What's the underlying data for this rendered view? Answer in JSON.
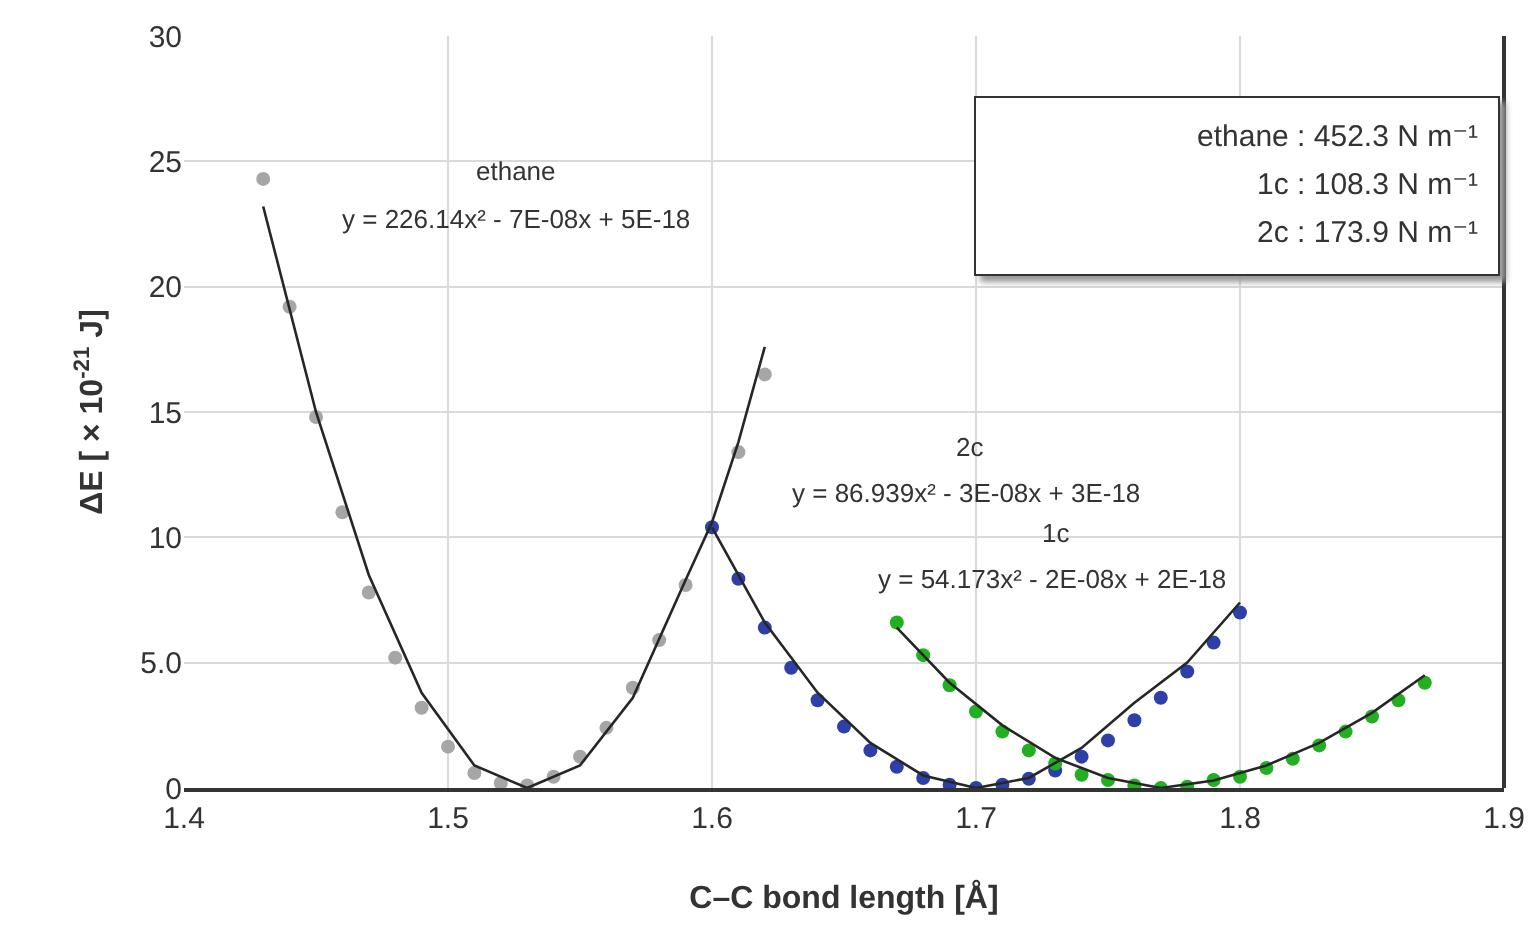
{
  "chart_data": {
    "type": "scatter",
    "xlabel": "C–C bond length [Å]",
    "ylabel": "ΔE [ × 10$^{-21}$ J]",
    "xlim": [
      1.4,
      1.9
    ],
    "xticks": [
      1.4,
      1.5,
      1.6,
      1.7,
      1.8,
      1.9
    ],
    "ylim": [
      0,
      30
    ],
    "yticks": [
      0,
      {
        "value": 5,
        "label": "5.0"
      },
      10,
      15,
      20,
      25,
      30
    ],
    "grid": true,
    "marker": "circle",
    "series": [
      {
        "color": "#a6a6a6",
        "x": [
          1.43,
          1.44,
          1.45,
          1.46,
          1.47,
          1.48,
          1.49,
          1.5,
          1.51,
          1.52,
          1.53,
          1.54,
          1.55,
          1.56,
          1.57,
          1.58,
          1.59,
          1.61,
          1.62
        ],
        "values": [
          24.3,
          19.2,
          14.8,
          11.0,
          7.8,
          5.2,
          3.2,
          1.65,
          0.6,
          0.2,
          0.1,
          0.45,
          1.25,
          2.4,
          4.0,
          5.9,
          8.1,
          13.4,
          16.5
        ]
      },
      {
        "color": "#2f3fa8",
        "x": [
          1.6,
          1.61,
          1.62,
          1.63,
          1.64,
          1.65,
          1.66,
          1.67,
          1.68,
          1.69,
          1.7,
          1.71,
          1.72,
          1.73,
          1.74,
          1.75,
          1.76,
          1.77,
          1.78,
          1.79,
          1.8
        ],
        "values": [
          10.4,
          8.35,
          6.4,
          4.8,
          3.5,
          2.45,
          1.5,
          0.85,
          0.4,
          0.13,
          0.0,
          0.13,
          0.37,
          0.7,
          1.25,
          1.9,
          2.7,
          3.6,
          4.65,
          5.8,
          7.0
        ]
      },
      {
        "color": "#22b022",
        "x": [
          1.67,
          1.68,
          1.69,
          1.7,
          1.71,
          1.72,
          1.73,
          1.74,
          1.75,
          1.76,
          1.77,
          1.78,
          1.79,
          1.8,
          1.81,
          1.82,
          1.83,
          1.84,
          1.85,
          1.86,
          1.87
        ],
        "values": [
          6.6,
          5.3,
          4.1,
          3.05,
          2.25,
          1.5,
          0.98,
          0.53,
          0.32,
          0.1,
          0.0,
          0.05,
          0.32,
          0.45,
          0.8,
          1.17,
          1.7,
          2.25,
          2.85,
          3.5,
          4.2
        ]
      },
      {
        "type": "line",
        "color": "#262626",
        "marker": "none",
        "x": [
          1.43,
          1.45,
          1.47,
          1.49,
          1.51,
          1.53,
          1.55,
          1.57,
          1.59,
          1.6,
          1.61,
          1.62
        ],
        "values": [
          23.2,
          15.0,
          8.5,
          3.8,
          0.9,
          0,
          0.9,
          3.6,
          8.3,
          10.6,
          13.8,
          17.6
        ]
      },
      {
        "type": "line",
        "color": "#262626",
        "marker": "none",
        "x": [
          1.6,
          1.62,
          1.64,
          1.66,
          1.68,
          1.7,
          1.72,
          1.74,
          1.76,
          1.78,
          1.8
        ],
        "values": [
          10.4,
          6.6,
          3.8,
          1.8,
          0.5,
          0,
          0.4,
          1.6,
          3.4,
          5.0,
          7.4
        ]
      },
      {
        "type": "line",
        "color": "#262626",
        "marker": "none",
        "x": [
          1.67,
          1.69,
          1.71,
          1.73,
          1.75,
          1.77,
          1.79,
          1.81,
          1.83,
          1.85,
          1.87
        ],
        "values": [
          6.4,
          4.2,
          2.5,
          1.2,
          0.4,
          0,
          0.3,
          0.9,
          1.8,
          3.0,
          4.5
        ]
      }
    ],
    "annotations": [
      "ethane",
      "y = 226.14x² - 7E-08x + 5E-18",
      "2c",
      "y = 86.939x² - 3E-08x + 3E-18",
      "1c",
      "y = 54.173x² - 2E-08x + 2E-18",
      "ethane : 452.3 N m⁻¹",
      "1c : 108.3 N m⁻¹",
      "2c : 173.9 N m⁻¹"
    ]
  }
}
